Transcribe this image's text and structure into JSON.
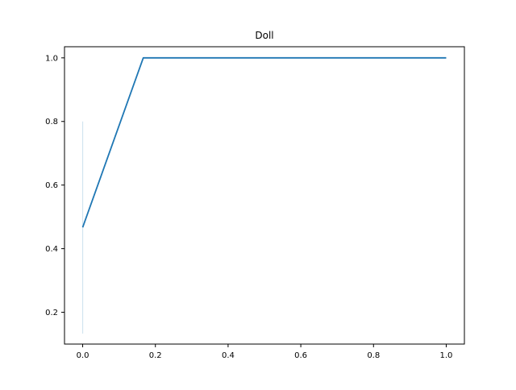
{
  "chart_data": {
    "type": "line",
    "title": "Doll",
    "xlabel": "",
    "ylabel": "",
    "xlim": [
      -0.05,
      1.05
    ],
    "ylim": [
      0.1,
      1.035
    ],
    "xticks": [
      0.0,
      0.2,
      0.4,
      0.6,
      0.8,
      1.0
    ],
    "xtick_labels": [
      "0.0",
      "0.2",
      "0.4",
      "0.6",
      "0.8",
      "1.0"
    ],
    "yticks": [
      0.2,
      0.4,
      0.6,
      0.8,
      1.0
    ],
    "ytick_labels": [
      "0.2",
      "0.4",
      "0.6",
      "0.8",
      "1.0"
    ],
    "grid": false,
    "legend": false,
    "series": [
      {
        "x": [
          0.0,
          0.1667,
          0.3333,
          0.5,
          0.6667,
          0.8333,
          1.0
        ],
        "y": [
          0.467,
          1.0,
          1.0,
          1.0,
          1.0,
          1.0,
          1.0
        ],
        "color": "#1f77b4",
        "band": {
          "x": [
            0.0,
            0.1667,
            0.3333,
            0.5,
            0.6667,
            0.8333,
            1.0
          ],
          "lower": [
            0.133,
            1.0,
            1.0,
            1.0,
            1.0,
            1.0,
            1.0
          ],
          "upper": [
            0.8,
            1.0,
            1.0,
            1.0,
            1.0,
            1.0,
            1.0
          ],
          "color": "#1f77b4",
          "opacity": 0.2
        }
      }
    ]
  }
}
